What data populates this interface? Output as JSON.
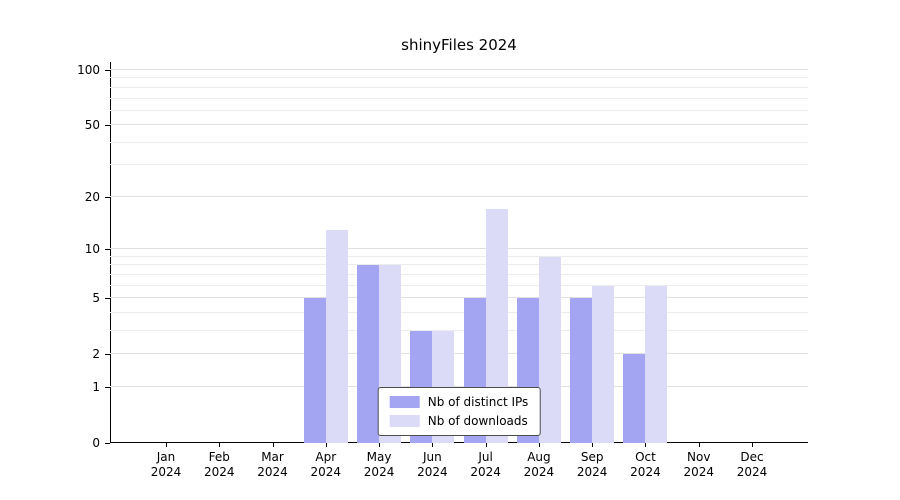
{
  "title": "shinyFiles 2024",
  "chart_data": {
    "type": "bar",
    "title": "shinyFiles 2024",
    "categories": [
      {
        "label": "Jan",
        "sublabel": "2024"
      },
      {
        "label": "Feb",
        "sublabel": "2024"
      },
      {
        "label": "Mar",
        "sublabel": "2024"
      },
      {
        "label": "Apr",
        "sublabel": "2024"
      },
      {
        "label": "May",
        "sublabel": "2024"
      },
      {
        "label": "Jun",
        "sublabel": "2024"
      },
      {
        "label": "Jul",
        "sublabel": "2024"
      },
      {
        "label": "Aug",
        "sublabel": "2024"
      },
      {
        "label": "Sep",
        "sublabel": "2024"
      },
      {
        "label": "Oct",
        "sublabel": "2024"
      },
      {
        "label": "Nov",
        "sublabel": "2024"
      },
      {
        "label": "Dec",
        "sublabel": "2024"
      }
    ],
    "series": [
      {
        "name": "Nb of distinct IPs",
        "color": "#a3a5f2",
        "values": [
          0,
          0,
          0,
          5,
          8,
          3,
          5,
          5,
          5,
          2,
          0,
          0
        ]
      },
      {
        "name": "Nb of downloads",
        "color": "#dbdbf8",
        "values": [
          0,
          0,
          0,
          13,
          8,
          3,
          17,
          9,
          6,
          6,
          0,
          0
        ]
      }
    ],
    "y_scale": "log1p",
    "y_ticks": [
      0,
      1,
      2,
      5,
      10,
      20,
      50,
      100
    ],
    "y_minor_ticks": [
      3,
      4,
      6,
      7,
      8,
      9,
      30,
      40,
      60,
      70,
      80,
      90
    ],
    "ylim": [
      0,
      100
    ],
    "grid": true,
    "legend_position": "lower center",
    "xlabel": "",
    "ylabel": ""
  },
  "legend": {
    "items": [
      {
        "label": "Nb of distinct IPs",
        "color": "#a3a5f2"
      },
      {
        "label": "Nb of downloads",
        "color": "#dbdbf8"
      }
    ]
  }
}
